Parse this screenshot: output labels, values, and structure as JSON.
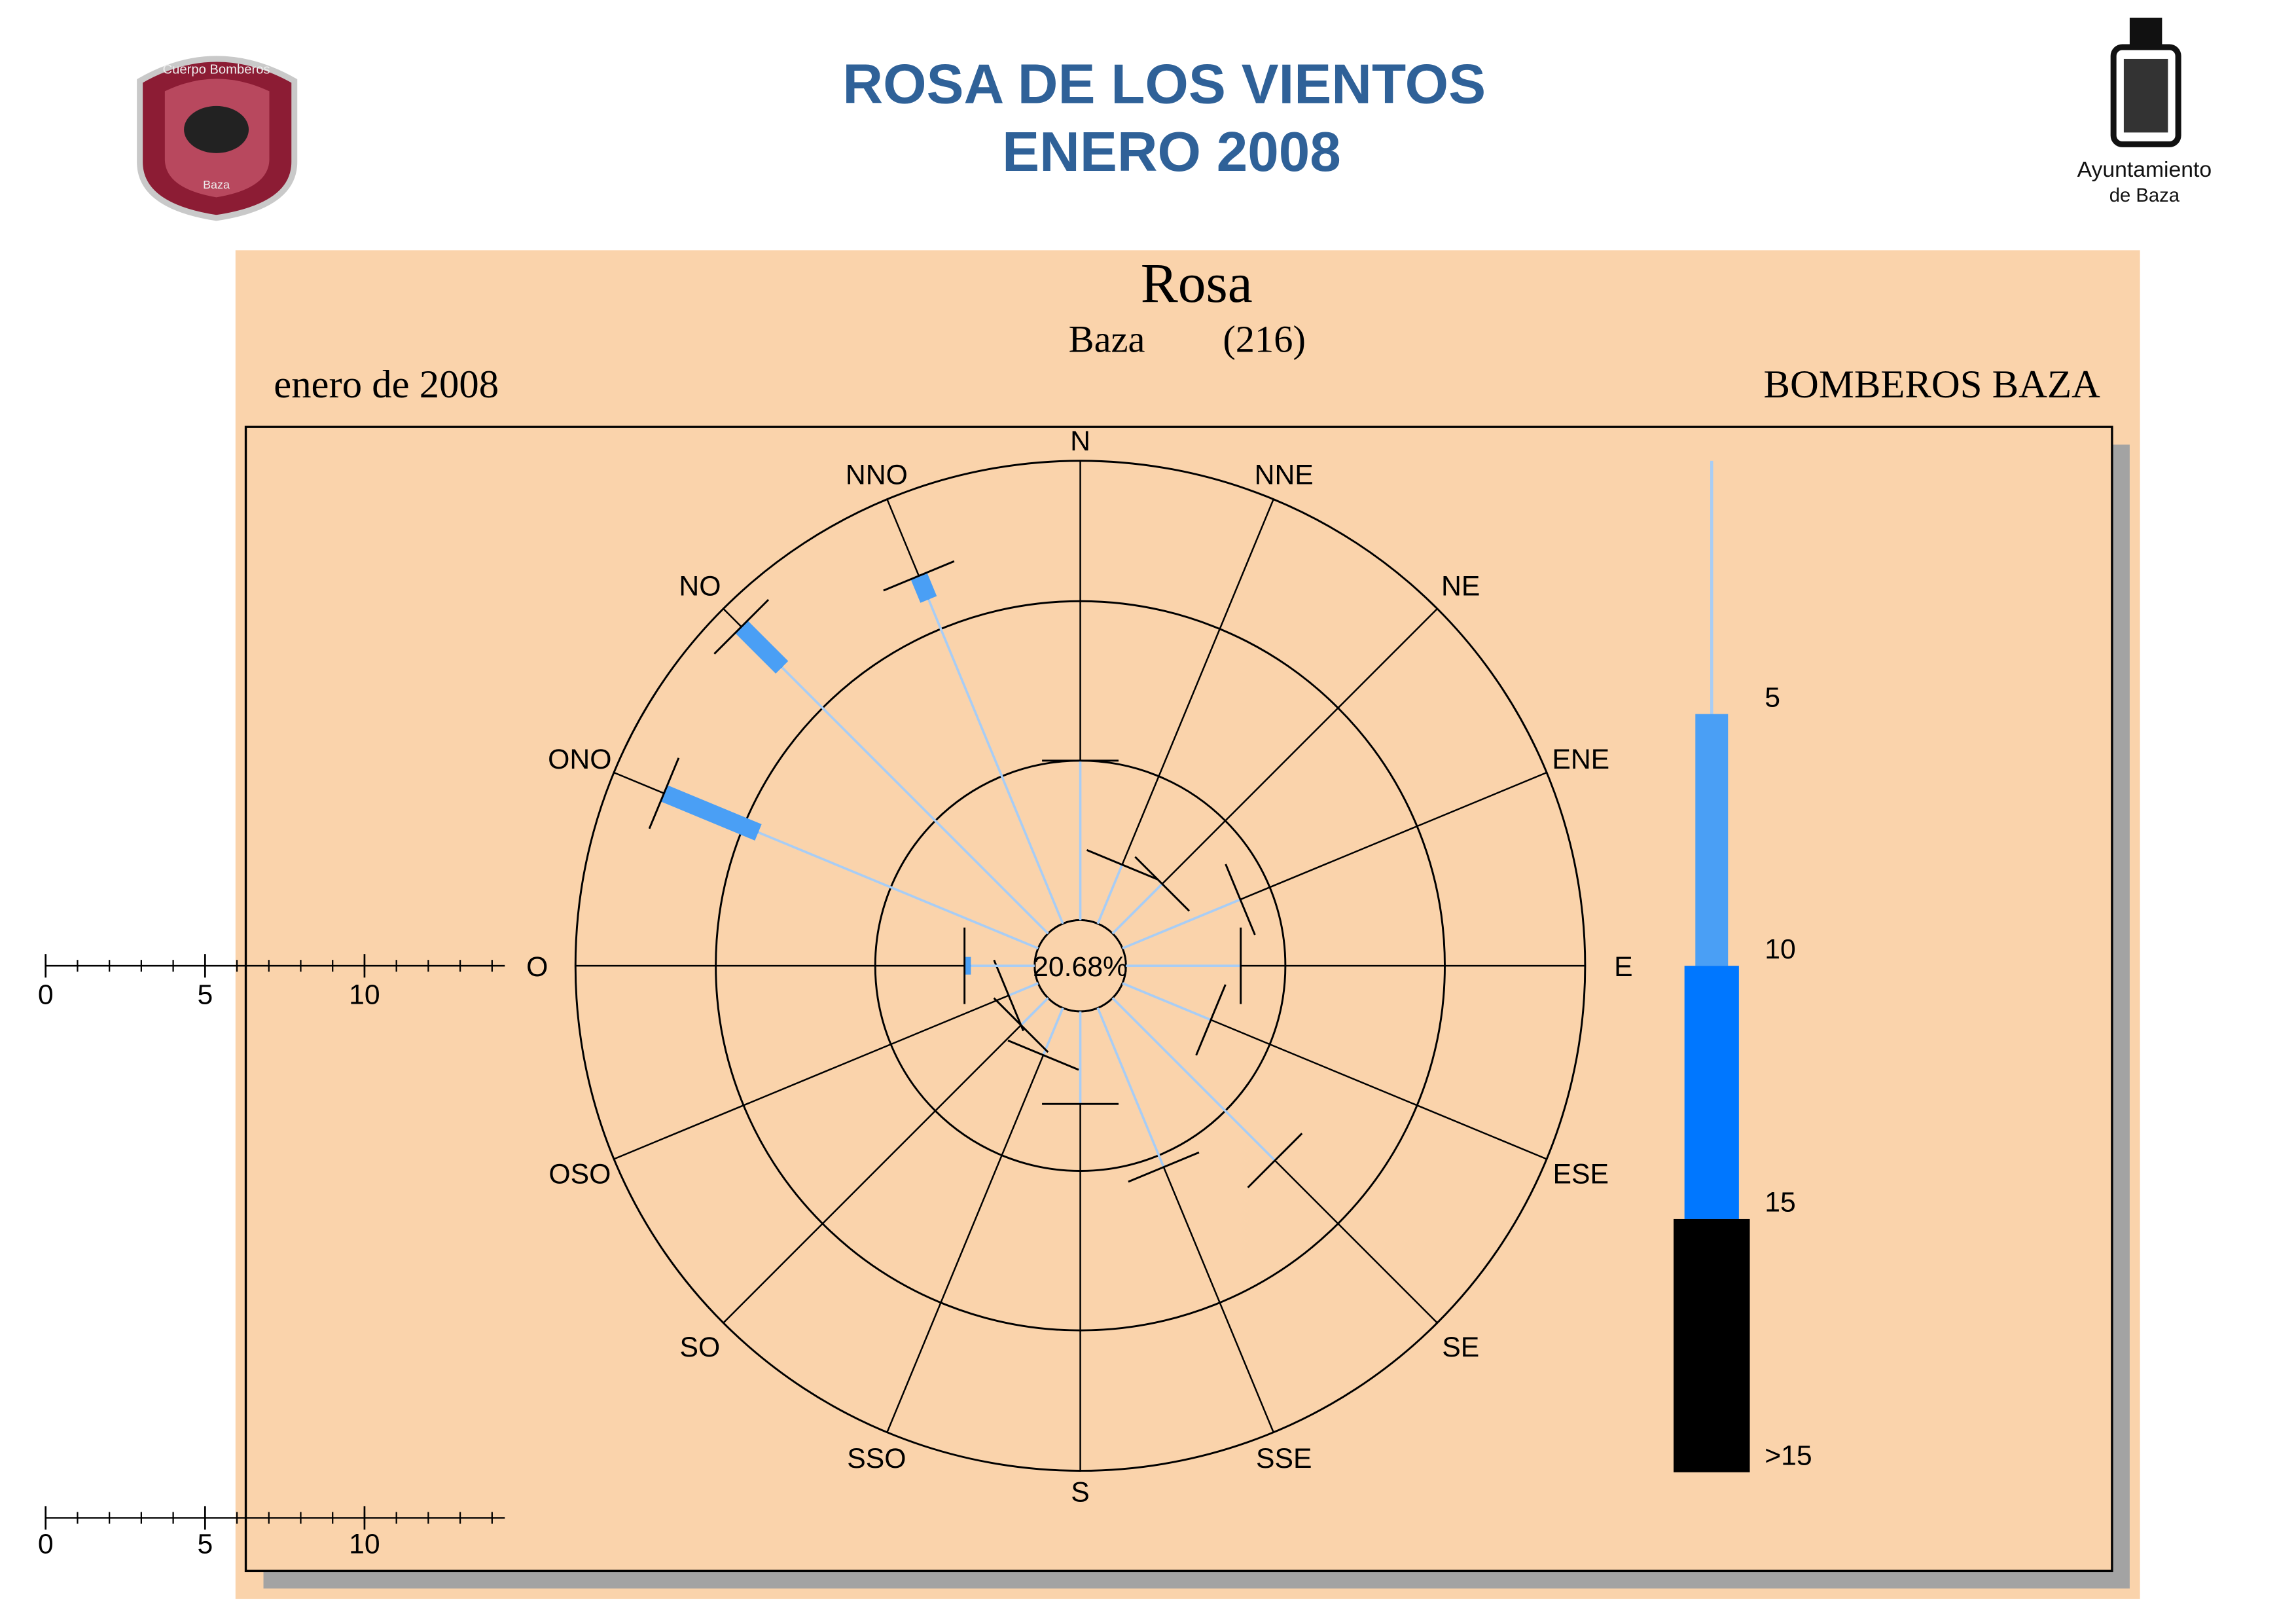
{
  "header": {
    "title_line1": "ROSA DE LOS VIENTOS",
    "title_line2": "ENERO 2008",
    "logo_left_text": "Cuerpo Bomberos",
    "logo_left_town": "Baza",
    "logo_right_line1": "Ayuntamiento",
    "logo_right_line2": "de Baza"
  },
  "chart_data": {
    "type": "windrose",
    "title": "Rosa",
    "station": "Baza",
    "station_code": "(216)",
    "period": "enero de 2008",
    "source": "BOMBEROS BAZA",
    "categories": [
      "N",
      "NNE",
      "NE",
      "ENE",
      "E",
      "ESE",
      "SE",
      "SSE",
      "S",
      "SSO",
      "SO",
      "OSO",
      "O",
      "ONO",
      "NO",
      "NNO"
    ],
    "series": [
      {
        "name": "5",
        "color": "#a8cdf5",
        "values": [
          5.0,
          2.0,
          2.2,
          4.0,
          3.6,
          3.0,
          7.2,
          5.4,
          2.9,
          1.6,
          1.2,
          1.0,
          2.0,
          9.5,
          11.8,
          11.0
        ]
      },
      {
        "name": "10",
        "color": "#4a9ff5",
        "values": [
          0,
          0,
          0,
          0,
          0,
          0,
          0,
          0,
          0,
          0,
          0,
          0,
          0.2,
          3.2,
          1.8,
          0.8
        ]
      },
      {
        "name": "15",
        "color": "#0077ff",
        "values": [
          0,
          0,
          0,
          0,
          0,
          0,
          0,
          0,
          0,
          0,
          0,
          0,
          0,
          0,
          0,
          0
        ]
      },
      {
        "name": ">15",
        "color": "#000000",
        "values": [
          0,
          0,
          0,
          0,
          0,
          0,
          0,
          0,
          0,
          0,
          0,
          0,
          0,
          0,
          0,
          0
        ]
      }
    ],
    "calm": {
      "value": 20.68,
      "label": "20.68%"
    },
    "rlim": [
      0,
      14.4
    ],
    "rticks": [
      0,
      5,
      10
    ]
  }
}
